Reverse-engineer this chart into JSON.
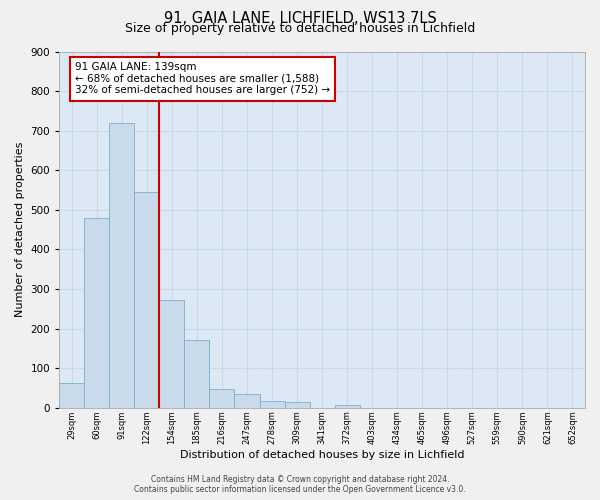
{
  "title1": "91, GAIA LANE, LICHFIELD, WS13 7LS",
  "title2": "Size of property relative to detached houses in Lichfield",
  "xlabel": "Distribution of detached houses by size in Lichfield",
  "ylabel": "Number of detached properties",
  "categories": [
    "29sqm",
    "60sqm",
    "91sqm",
    "122sqm",
    "154sqm",
    "185sqm",
    "216sqm",
    "247sqm",
    "278sqm",
    "309sqm",
    "341sqm",
    "372sqm",
    "403sqm",
    "434sqm",
    "465sqm",
    "496sqm",
    "527sqm",
    "559sqm",
    "590sqm",
    "621sqm",
    "652sqm"
  ],
  "values": [
    62,
    480,
    720,
    545,
    272,
    172,
    47,
    35,
    18,
    14,
    0,
    8,
    0,
    0,
    0,
    0,
    0,
    0,
    0,
    0,
    0
  ],
  "bar_color": "#c9daea",
  "bar_edge_color": "#7baed0",
  "vline_color": "#cc0000",
  "annotation_text": "91 GAIA LANE: 139sqm\n← 68% of detached houses are smaller (1,588)\n32% of semi-detached houses are larger (752) →",
  "annotation_box_color": "#ffffff",
  "annotation_box_edge_color": "#cc0000",
  "ylim": [
    0,
    900
  ],
  "yticks": [
    0,
    100,
    200,
    300,
    400,
    500,
    600,
    700,
    800,
    900
  ],
  "grid_color": "#c8d8e8",
  "plot_bg_color": "#dce9f5",
  "fig_bg_color": "#f0f0f0",
  "footer_line1": "Contains HM Land Registry data © Crown copyright and database right 2024.",
  "footer_line2": "Contains public sector information licensed under the Open Government Licence v3.0."
}
